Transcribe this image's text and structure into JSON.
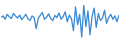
{
  "chart_data": {
    "type": "line",
    "values": [
      62,
      66,
      58,
      70,
      64,
      60,
      72,
      66,
      61,
      68,
      57,
      63,
      70,
      59,
      55,
      66,
      62,
      35,
      60,
      68,
      74,
      58,
      63,
      71,
      60,
      55,
      67,
      62,
      73,
      58,
      64,
      76,
      52,
      68,
      60,
      30,
      88,
      45,
      70,
      15,
      92,
      40,
      78,
      20,
      65,
      85,
      38,
      72,
      55,
      60,
      80,
      48,
      62,
      70,
      58,
      66,
      52,
      68
    ],
    "color": "#3a8ad6",
    "ylim": [
      0,
      100
    ],
    "tick_labels": false,
    "grid": false
  }
}
